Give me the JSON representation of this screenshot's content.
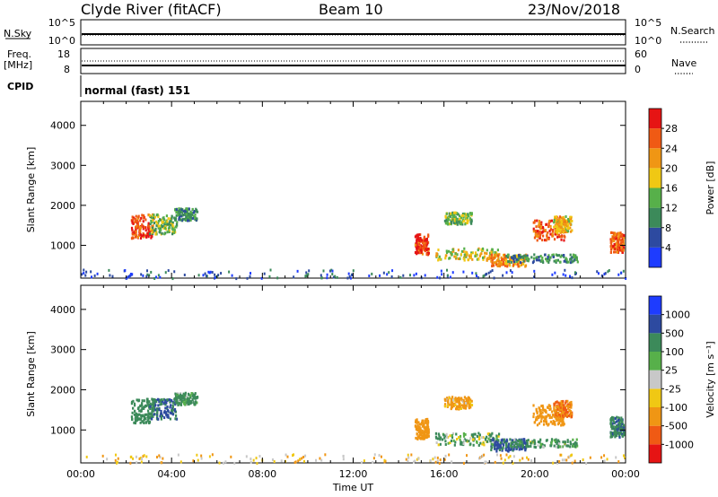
{
  "header": {
    "station": "Clyde River (fitACF)",
    "beam": "Beam 10",
    "date": "23/Nov/2018"
  },
  "strip_labels": {
    "nsky": "N.Sky",
    "nsearch": "N.Search",
    "freq_top": "Freq.",
    "freq_unit": "[MHz]",
    "nave": "Nave",
    "cpid": "CPID",
    "cpid_value": "normal (fast) 151",
    "nsky_hi": "10^5",
    "nsky_lo": "10^0",
    "nsearch_hi": "10^5",
    "nsearch_lo": "10^0",
    "freq_hi": "18",
    "freq_lo": "8",
    "nave_hi": "60",
    "nave_lo": "0"
  },
  "colors": {
    "power": [
      "#1e3cff",
      "#2d4aa0",
      "#3c8a5a",
      "#57b04a",
      "#f0c814",
      "#f09614",
      "#f05a14",
      "#e61414"
    ],
    "velocity": [
      "#e61414",
      "#f05a14",
      "#f09614",
      "#f0c814",
      "#c8c8c8",
      "#57b04a",
      "#3c8a5a",
      "#2d4aa0",
      "#1e3cff"
    ]
  },
  "chart_data": [
    {
      "type": "heatmap",
      "name": "power",
      "xlabel": "",
      "ylabel": "Slant Range [km]",
      "colorbar_label": "Power [dB]",
      "colorbar_ticks": [
        "4",
        "8",
        "12",
        "16",
        "20",
        "24",
        "28"
      ],
      "x_ticks": [],
      "y_ticks": [
        "1000",
        "2000",
        "3000",
        "4000"
      ],
      "xlim": [
        0,
        24
      ],
      "ylim": [
        180,
        4600
      ],
      "blobs": [
        {
          "t": 2.7,
          "r": 1500,
          "w": 0.5,
          "h": 300,
          "v": 28
        },
        {
          "t": 3.6,
          "r": 1550,
          "w": 0.6,
          "h": 250,
          "v": 14
        },
        {
          "t": 4.6,
          "r": 1800,
          "w": 0.5,
          "h": 150,
          "v": 10
        },
        {
          "t": 15.0,
          "r": 1050,
          "w": 0.3,
          "h": 250,
          "v": 28
        },
        {
          "t": 16.6,
          "r": 1700,
          "w": 0.6,
          "h": 150,
          "v": 14
        },
        {
          "t": 17.0,
          "r": 800,
          "w": 1.4,
          "h": 150,
          "v": 18
        },
        {
          "t": 18.8,
          "r": 650,
          "w": 0.8,
          "h": 150,
          "v": 22
        },
        {
          "t": 20.3,
          "r": 700,
          "w": 1.6,
          "h": 100,
          "v": 10
        },
        {
          "t": 20.6,
          "r": 1400,
          "w": 0.7,
          "h": 250,
          "v": 26
        },
        {
          "t": 21.2,
          "r": 1550,
          "w": 0.4,
          "h": 200,
          "v": 20
        },
        {
          "t": 23.6,
          "r": 1100,
          "w": 0.3,
          "h": 250,
          "v": 26
        }
      ]
    },
    {
      "type": "heatmap",
      "name": "velocity",
      "xlabel": "Time UT",
      "ylabel": "Slant Range [km]",
      "colorbar_label": "Velocity [m s⁻¹]",
      "colorbar_ticks": [
        "-1000",
        "-500",
        "-100",
        "-25",
        "25",
        "100",
        "500",
        "1000"
      ],
      "x_ticks": [
        "00:00",
        "04:00",
        "08:00",
        "12:00",
        "16:00",
        "20:00",
        "00:00"
      ],
      "y_ticks": [
        "1000",
        "2000",
        "3000",
        "4000"
      ],
      "xlim": [
        0,
        24
      ],
      "ylim": [
        180,
        4600
      ],
      "blobs": [
        {
          "t": 2.7,
          "r": 1500,
          "w": 0.5,
          "h": 300,
          "v": 300
        },
        {
          "t": 3.6,
          "r": 1550,
          "w": 0.6,
          "h": 250,
          "v": 500
        },
        {
          "t": 4.6,
          "r": 1800,
          "w": 0.5,
          "h": 150,
          "v": 200
        },
        {
          "t": 15.0,
          "r": 1050,
          "w": 0.3,
          "h": 250,
          "v": -300
        },
        {
          "t": 16.6,
          "r": 1700,
          "w": 0.6,
          "h": 150,
          "v": -200
        },
        {
          "t": 17.0,
          "r": 800,
          "w": 1.4,
          "h": 150,
          "v": 100
        },
        {
          "t": 18.8,
          "r": 650,
          "w": 0.8,
          "h": 150,
          "v": 600
        },
        {
          "t": 20.3,
          "r": 700,
          "w": 1.6,
          "h": 100,
          "v": 150
        },
        {
          "t": 20.6,
          "r": 1400,
          "w": 0.7,
          "h": 250,
          "v": -300
        },
        {
          "t": 21.2,
          "r": 1550,
          "w": 0.4,
          "h": 200,
          "v": -500
        },
        {
          "t": 23.6,
          "r": 1100,
          "w": 0.3,
          "h": 250,
          "v": 400
        }
      ]
    }
  ]
}
